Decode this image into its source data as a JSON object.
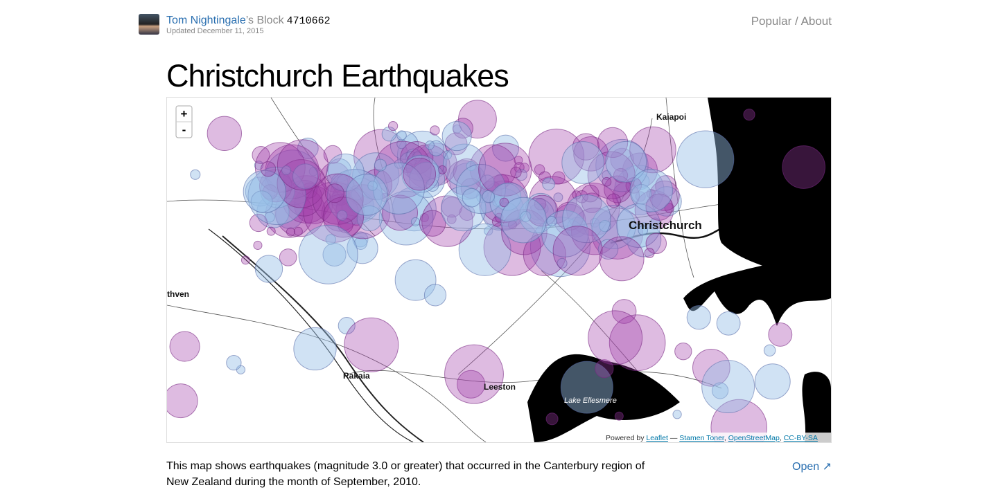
{
  "header": {
    "author": "Tom Nightingale",
    "suffix": "’s Block",
    "id": "4710662",
    "updated": "Updated December 11, 2015",
    "nav": {
      "popular": "Popular",
      "separator": "/",
      "about": "About"
    }
  },
  "title": "Christchurch Earthquakes",
  "map": {
    "zoom_in": "+",
    "zoom_out": "-",
    "labels": {
      "kaiapoi": "Kaiapoi",
      "christchurch": "Christchurch",
      "methven": "thven",
      "rakaia": "Rakaia",
      "leeston": "Leeston",
      "lake": "Lake Ellesmere"
    },
    "attribution": {
      "prefix": "Powered by",
      "leaflet": "Leaflet",
      "dash": "—",
      "stamen": "Stamen Toner",
      "comma1": ",",
      "osm": "OpenStreetMap",
      "comma2": ",",
      "license": "CC-BY-SA"
    }
  },
  "description": "This map shows earthquakes (magnitude 3.0 or greater) that occurred in the Canterbury region of New Zealand during the month of September, 2010.",
  "open": "Open"
}
